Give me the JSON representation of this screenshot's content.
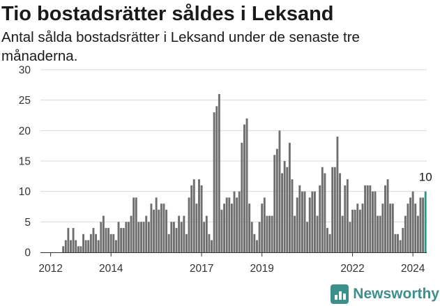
{
  "header": {
    "title": "Tio bostadsrätter såldes i Leksand",
    "subtitle": "Antal sålda bostadsrätter i Leksand under de senaste tre månaderna."
  },
  "brand": {
    "name": "Newsworthy",
    "icon": "newsworthy-logo-icon",
    "color": "#3d8f8b"
  },
  "chart_data": {
    "type": "bar",
    "x_start": "2011-10",
    "x_interval": "month",
    "ylim": [
      0,
      30
    ],
    "yticks": [
      0,
      5,
      10,
      15,
      20,
      25,
      30
    ],
    "xticks": [
      {
        "label": "2012",
        "month": "2012-01"
      },
      {
        "label": "2014",
        "month": "2014-01"
      },
      {
        "label": "2017",
        "month": "2017-01"
      },
      {
        "label": "2019",
        "month": "2019-01"
      },
      {
        "label": "2022",
        "month": "2022-01"
      },
      {
        "label": "2024",
        "month": "2024-01"
      }
    ],
    "values": [
      0,
      0,
      0,
      0,
      0,
      0,
      0,
      0,
      1,
      2,
      4,
      2,
      4,
      2,
      1,
      1,
      3,
      2,
      2,
      3,
      4,
      3,
      2,
      5,
      6,
      4,
      4,
      3,
      3,
      2,
      5,
      4,
      4,
      5,
      5,
      6,
      9,
      9,
      5,
      5,
      5,
      6,
      5,
      8,
      7,
      9,
      7,
      8,
      8,
      7,
      3,
      5,
      5,
      4,
      6,
      5,
      6,
      3,
      9,
      11,
      12,
      8,
      12,
      11,
      5,
      6,
      3,
      2,
      23,
      24,
      26,
      7,
      8,
      9,
      9,
      8,
      10,
      9,
      10,
      18,
      21,
      22,
      8,
      5,
      3,
      2,
      5,
      8,
      9,
      6,
      6,
      6,
      16,
      17,
      20,
      13,
      15,
      14,
      18,
      12,
      6,
      9,
      11,
      10,
      10,
      5,
      9,
      10,
      10,
      6,
      11,
      14,
      13,
      4,
      3,
      14,
      14,
      19,
      13,
      6,
      11,
      12,
      5,
      7,
      7,
      8,
      7,
      8,
      11,
      11,
      11,
      10,
      10,
      6,
      6,
      8,
      11,
      12,
      8,
      8,
      3,
      3,
      2,
      4,
      6,
      8,
      9,
      10,
      8,
      6,
      9,
      9,
      10
    ],
    "highlight": {
      "value": 10,
      "label": "10",
      "color": "#1f9d8e"
    },
    "bar_color": "#6e6e6e",
    "grid": true
  }
}
